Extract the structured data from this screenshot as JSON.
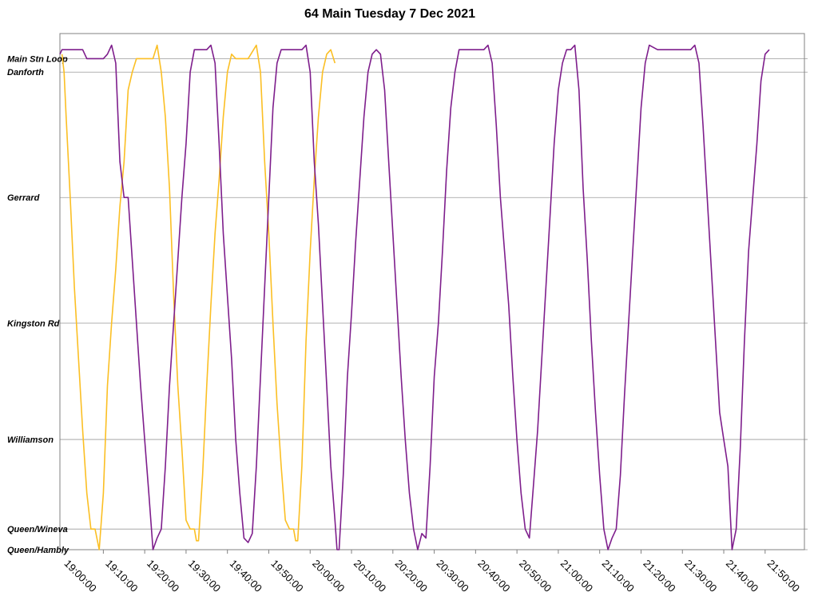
{
  "chart_data": {
    "type": "line",
    "title": "64 Main Tuesday 7 Dec 2021",
    "xlabel": "",
    "ylabel": "",
    "x_ticks": [
      "19:00:00",
      "19:10:00",
      "19:20:00",
      "19:30:00",
      "19:40:00",
      "19:50:00",
      "20:00:00",
      "20:10:00",
      "20:20:00",
      "20:30:00",
      "20:40:00",
      "20:50:00",
      "21:00:00",
      "21:10:00",
      "21:20:00",
      "21:30:00",
      "21:40:00",
      "21:50:00"
    ],
    "xlim": [
      "18:59:30",
      "21:59:30"
    ],
    "y_stops": [
      {
        "label": "Main Stn Loop",
        "value": 5.15
      },
      {
        "label": "Danforth",
        "value": 5.0
      },
      {
        "label": "Gerrard",
        "value": 3.6
      },
      {
        "label": "Kingston Rd",
        "value": 2.2
      },
      {
        "label": "Williamson",
        "value": 0.9
      },
      {
        "label": "Queen/Wineva",
        "value": -0.1
      },
      {
        "label": "Queen/Hambly",
        "value": -0.33
      }
    ],
    "ylim": [
      -0.33,
      5.43
    ],
    "grid": "horizontal",
    "series": [
      {
        "color": "#fbbf24",
        "points": [
          [
            "19:00:00",
            5.2
          ],
          [
            "19:00:30",
            5.0
          ],
          [
            "19:01:00",
            4.5
          ],
          [
            "19:02:00",
            3.6
          ],
          [
            "19:03:00",
            2.6
          ],
          [
            "19:04:00",
            1.8
          ],
          [
            "19:05:00",
            1.0
          ],
          [
            "19:06:00",
            0.3
          ],
          [
            "19:07:00",
            -0.1
          ],
          [
            "19:08:00",
            -0.1
          ],
          [
            "19:09:00",
            -0.33
          ],
          [
            "19:09:00",
            -0.33
          ],
          [
            "19:10:00",
            0.3
          ],
          [
            "19:11:00",
            1.5
          ],
          [
            "19:12:00",
            2.2
          ],
          [
            "19:13:00",
            2.8
          ],
          [
            "19:14:00",
            3.5
          ],
          [
            "19:15:00",
            4.0
          ],
          [
            "19:16:00",
            4.8
          ],
          [
            "19:17:00",
            5.0
          ],
          [
            "19:18:00",
            5.15
          ],
          [
            "19:20:00",
            5.15
          ],
          [
            "19:22:00",
            5.15
          ],
          [
            "19:23:00",
            5.3
          ],
          [
            "19:24:00",
            5.0
          ],
          [
            "19:25:00",
            4.5
          ],
          [
            "19:26:00",
            3.7
          ],
          [
            "19:27:00",
            2.5
          ],
          [
            "19:28:00",
            1.5
          ],
          [
            "19:29:00",
            0.8
          ],
          [
            "19:30:00",
            0.0
          ],
          [
            "19:31:00",
            -0.1
          ],
          [
            "19:32:00",
            -0.1
          ],
          [
            "19:32:30",
            -0.23
          ],
          [
            "19:33:00",
            -0.23
          ],
          [
            "19:33:00",
            -0.23
          ],
          [
            "19:34:00",
            0.5
          ],
          [
            "19:35:00",
            1.5
          ],
          [
            "19:36:00",
            2.4
          ],
          [
            "19:37:00",
            3.2
          ],
          [
            "19:38:00",
            3.8
          ],
          [
            "19:39:00",
            4.5
          ],
          [
            "19:40:00",
            5.0
          ],
          [
            "19:41:00",
            5.2
          ],
          [
            "19:42:00",
            5.15
          ],
          [
            "19:45:00",
            5.15
          ],
          [
            "19:47:00",
            5.3
          ],
          [
            "19:48:00",
            5.0
          ],
          [
            "19:49:00",
            4.0
          ],
          [
            "19:50:00",
            3.2
          ],
          [
            "19:51:00",
            2.2
          ],
          [
            "19:52:00",
            1.3
          ],
          [
            "19:53:00",
            0.6
          ],
          [
            "19:54:00",
            0.0
          ],
          [
            "19:55:00",
            -0.1
          ],
          [
            "19:56:00",
            -0.1
          ],
          [
            "19:56:30",
            -0.23
          ],
          [
            "19:57:00",
            -0.23
          ],
          [
            "19:57:00",
            -0.23
          ],
          [
            "19:58:00",
            0.6
          ],
          [
            "19:59:00",
            2.0
          ],
          [
            "20:00:00",
            3.0
          ],
          [
            "20:01:00",
            3.8
          ],
          [
            "20:02:00",
            4.5
          ],
          [
            "20:03:00",
            5.0
          ],
          [
            "20:04:00",
            5.2
          ],
          [
            "20:05:00",
            5.25
          ],
          [
            "20:06:00",
            5.1
          ]
        ]
      },
      {
        "color": "#7e1e8c",
        "points": [
          [
            "18:59:30",
            5.2
          ],
          [
            "19:00:00",
            5.25
          ],
          [
            "19:05:00",
            5.25
          ],
          [
            "19:06:00",
            5.15
          ],
          [
            "19:10:00",
            5.15
          ],
          [
            "19:11:00",
            5.2
          ],
          [
            "19:12:00",
            5.3
          ],
          [
            "19:13:00",
            5.1
          ],
          [
            "19:14:00",
            4.0
          ],
          [
            "19:15:00",
            3.6
          ],
          [
            "19:16:00",
            3.6
          ],
          [
            "19:17:00",
            2.9
          ],
          [
            "19:18:00",
            2.2
          ],
          [
            "19:19:00",
            1.5
          ],
          [
            "19:20:00",
            0.9
          ],
          [
            "19:21:00",
            0.3
          ],
          [
            "19:22:00",
            -0.33
          ],
          [
            "19:23:00",
            -0.2
          ],
          [
            "19:24:00",
            -0.1
          ],
          [
            "19:25:00",
            0.6
          ],
          [
            "19:26:00",
            1.5
          ],
          [
            "19:27:00",
            2.2
          ],
          [
            "19:28:00",
            2.9
          ],
          [
            "19:29:00",
            3.6
          ],
          [
            "19:30:00",
            4.2
          ],
          [
            "19:31:00",
            5.0
          ],
          [
            "19:32:00",
            5.25
          ],
          [
            "19:35:00",
            5.25
          ],
          [
            "19:36:00",
            5.3
          ],
          [
            "19:37:00",
            5.1
          ],
          [
            "19:38:00",
            4.2
          ],
          [
            "19:39:00",
            3.2
          ],
          [
            "19:40:00",
            2.5
          ],
          [
            "19:41:00",
            1.8
          ],
          [
            "19:42:00",
            0.9
          ],
          [
            "19:43:00",
            0.3
          ],
          [
            "19:44:00",
            -0.2
          ],
          [
            "19:45:00",
            -0.25
          ],
          [
            "19:46:00",
            -0.15
          ],
          [
            "19:47:00",
            0.6
          ],
          [
            "19:48:00",
            1.6
          ],
          [
            "19:49:00",
            2.6
          ],
          [
            "19:50:00",
            3.6
          ],
          [
            "19:51:00",
            4.6
          ],
          [
            "19:52:00",
            5.1
          ],
          [
            "19:53:00",
            5.25
          ],
          [
            "19:58:00",
            5.25
          ],
          [
            "19:59:00",
            5.3
          ],
          [
            "20:00:00",
            5.0
          ],
          [
            "20:01:00",
            4.0
          ],
          [
            "20:02:00",
            3.3
          ],
          [
            "20:03:00",
            2.4
          ],
          [
            "20:04:00",
            1.5
          ],
          [
            "20:05:00",
            0.6
          ],
          [
            "20:06:00",
            0.0
          ],
          [
            "20:06:30",
            -0.33
          ],
          [
            "20:07:00",
            -0.33
          ],
          [
            "20:08:00",
            0.5
          ],
          [
            "20:09:00",
            1.6
          ],
          [
            "20:10:00",
            2.3
          ],
          [
            "20:11:00",
            3.1
          ],
          [
            "20:12:00",
            3.8
          ],
          [
            "20:13:00",
            4.5
          ],
          [
            "20:14:00",
            5.0
          ],
          [
            "20:15:00",
            5.2
          ],
          [
            "20:16:00",
            5.25
          ],
          [
            "20:17:00",
            5.2
          ],
          [
            "20:18:00",
            4.8
          ],
          [
            "20:19:00",
            4.0
          ],
          [
            "20:20:00",
            3.2
          ],
          [
            "20:21:00",
            2.4
          ],
          [
            "20:22:00",
            1.6
          ],
          [
            "20:23:00",
            0.9
          ],
          [
            "20:24:00",
            0.3
          ],
          [
            "20:25:00",
            -0.1
          ],
          [
            "20:26:00",
            -0.33
          ],
          [
            "20:27:00",
            -0.15
          ],
          [
            "20:28:00",
            -0.2
          ],
          [
            "20:29:00",
            0.6
          ],
          [
            "20:30:00",
            1.6
          ],
          [
            "20:31:00",
            2.2
          ],
          [
            "20:32:00",
            3.0
          ],
          [
            "20:33:00",
            3.9
          ],
          [
            "20:34:00",
            4.6
          ],
          [
            "20:35:00",
            5.0
          ],
          [
            "20:36:00",
            5.25
          ],
          [
            "20:42:00",
            5.25
          ],
          [
            "20:43:00",
            5.3
          ],
          [
            "20:44:00",
            5.1
          ],
          [
            "20:45:00",
            4.4
          ],
          [
            "20:46:00",
            3.6
          ],
          [
            "20:47:00",
            3.0
          ],
          [
            "20:48:00",
            2.4
          ],
          [
            "20:49:00",
            1.6
          ],
          [
            "20:50:00",
            0.9
          ],
          [
            "20:51:00",
            0.3
          ],
          [
            "20:52:00",
            -0.1
          ],
          [
            "20:53:00",
            -0.2
          ],
          [
            "20:54:00",
            0.4
          ],
          [
            "20:55:00",
            1.0
          ],
          [
            "20:56:00",
            1.8
          ],
          [
            "20:57:00",
            2.6
          ],
          [
            "20:58:00",
            3.4
          ],
          [
            "20:59:00",
            4.2
          ],
          [
            "21:00:00",
            4.8
          ],
          [
            "21:01:00",
            5.1
          ],
          [
            "21:02:00",
            5.25
          ],
          [
            "21:03:00",
            5.25
          ],
          [
            "21:04:00",
            5.3
          ],
          [
            "21:05:00",
            4.8
          ],
          [
            "21:06:00",
            3.7
          ],
          [
            "21:07:00",
            2.9
          ],
          [
            "21:08:00",
            2.0
          ],
          [
            "21:09:00",
            1.2
          ],
          [
            "21:10:00",
            0.5
          ],
          [
            "21:11:00",
            -0.1
          ],
          [
            "21:12:00",
            -0.33
          ],
          [
            "21:13:00",
            -0.2
          ],
          [
            "21:14:00",
            -0.1
          ],
          [
            "21:15:00",
            0.5
          ],
          [
            "21:16:00",
            1.4
          ],
          [
            "21:17:00",
            2.2
          ],
          [
            "21:18:00",
            3.0
          ],
          [
            "21:19:00",
            3.8
          ],
          [
            "21:20:00",
            4.6
          ],
          [
            "21:21:00",
            5.1
          ],
          [
            "21:22:00",
            5.3
          ],
          [
            "21:24:00",
            5.25
          ],
          [
            "21:32:00",
            5.25
          ],
          [
            "21:33:00",
            5.3
          ],
          [
            "21:34:00",
            5.1
          ],
          [
            "21:35:00",
            4.4
          ],
          [
            "21:36:00",
            3.6
          ],
          [
            "21:37:00",
            2.8
          ],
          [
            "21:38:00",
            2.0
          ],
          [
            "21:39:00",
            1.2
          ],
          [
            "21:40:00",
            0.9
          ],
          [
            "21:41:00",
            0.6
          ],
          [
            "21:42:00",
            -0.33
          ],
          [
            "21:43:00",
            -0.1
          ],
          [
            "21:44:00",
            0.8
          ],
          [
            "21:45:00",
            2.0
          ],
          [
            "21:46:00",
            3.0
          ],
          [
            "21:47:00",
            3.6
          ],
          [
            "21:48:00",
            4.2
          ],
          [
            "21:49:00",
            4.9
          ],
          [
            "21:50:00",
            5.2
          ],
          [
            "21:51:00",
            5.25
          ]
        ]
      }
    ]
  }
}
